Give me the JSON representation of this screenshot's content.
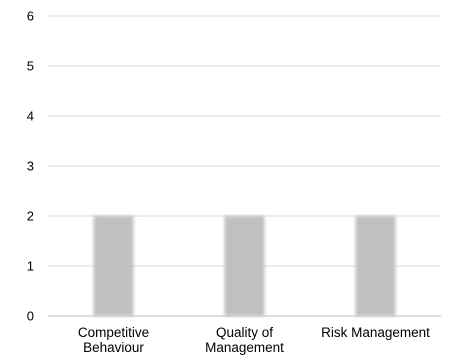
{
  "chart_data": {
    "type": "bar",
    "categories": [
      [
        "Competitive",
        "Behaviour"
      ],
      [
        "Quality of",
        "Management"
      ],
      [
        "Risk Management"
      ]
    ],
    "series": [
      {
        "values": [
          2,
          2,
          2
        ]
      }
    ],
    "ylim": [
      0,
      6
    ],
    "yticks": [
      0,
      1,
      2,
      3,
      4,
      5,
      6
    ],
    "grid": true,
    "legend": "none",
    "bar_color": "#c0c0c0",
    "grid_color": "#d9d9d9",
    "axis_color": "#bfbfbf"
  }
}
